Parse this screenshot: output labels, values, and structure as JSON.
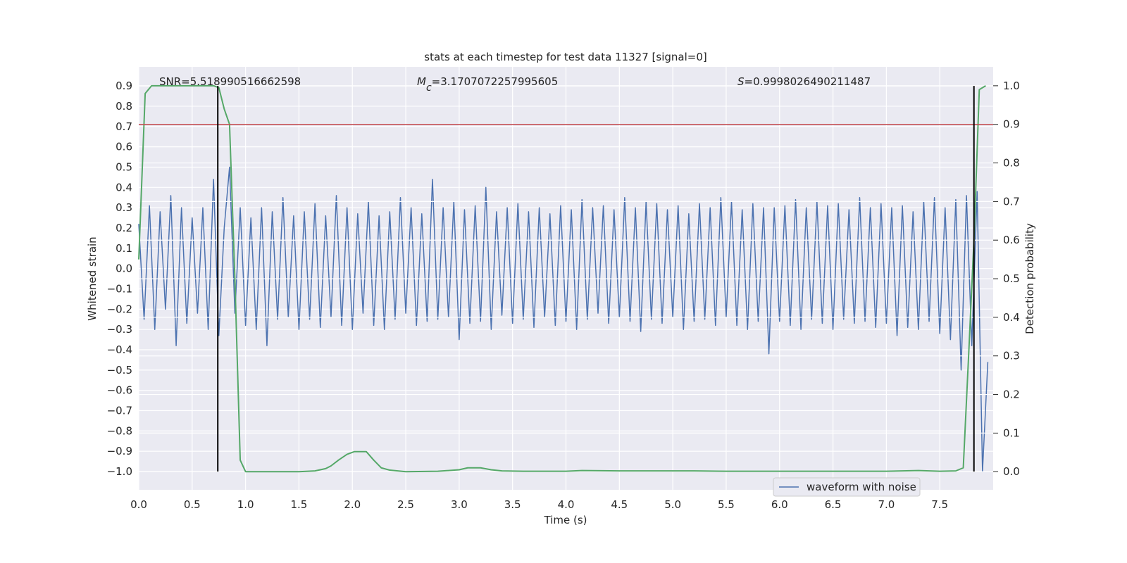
{
  "chart_data": {
    "type": "line",
    "title": "stats at each timestep for test data 11327 [signal=0]",
    "x_label": "Time (s)",
    "y_label": "Whitened strain",
    "y2_label": "Detection probability",
    "annotations": [
      {
        "text": "SNR=5.518990516662598"
      },
      {
        "symbol": "M",
        "subscript": "c",
        "text": "=3.1707072257995605"
      },
      {
        "symbol": "S",
        "text": "=0.9998026490211487"
      }
    ],
    "xlim": [
      0,
      8.0
    ],
    "ylim": [
      -1.09,
      0.994
    ],
    "y2lim": [
      -0.047,
      1.049
    ],
    "xticks": [
      {
        "value": 0,
        "label": "0.0"
      },
      {
        "value": 0.5,
        "label": "0.5"
      },
      {
        "value": 1,
        "label": "1.0"
      },
      {
        "value": 1.5,
        "label": "1.5"
      },
      {
        "value": 2,
        "label": "2.0"
      },
      {
        "value": 2.5,
        "label": "2.5"
      },
      {
        "value": 3,
        "label": "3.0"
      },
      {
        "value": 3.5,
        "label": "3.5"
      },
      {
        "value": 4,
        "label": "4.0"
      },
      {
        "value": 4.5,
        "label": "4.5"
      },
      {
        "value": 5,
        "label": "5.0"
      },
      {
        "value": 5.5,
        "label": "5.5"
      },
      {
        "value": 6,
        "label": "6.0"
      },
      {
        "value": 6.5,
        "label": "6.5"
      },
      {
        "value": 7,
        "label": "7.0"
      },
      {
        "value": 7.5,
        "label": "7.5"
      }
    ],
    "yticks": [
      {
        "value": -1.0,
        "label": "−1.0"
      },
      {
        "value": -0.9,
        "label": "−0.9"
      },
      {
        "value": -0.8,
        "label": "−0.8"
      },
      {
        "value": -0.7,
        "label": "−0.7"
      },
      {
        "value": -0.6,
        "label": "−0.6"
      },
      {
        "value": -0.5,
        "label": "−0.5"
      },
      {
        "value": -0.4,
        "label": "−0.4"
      },
      {
        "value": -0.3,
        "label": "−0.3"
      },
      {
        "value": -0.2,
        "label": "−0.2"
      },
      {
        "value": -0.1,
        "label": "−0.1"
      },
      {
        "value": 0,
        "label": "0.0"
      },
      {
        "value": 0.1,
        "label": "0.1"
      },
      {
        "value": 0.2,
        "label": "0.2"
      },
      {
        "value": 0.3,
        "label": "0.3"
      },
      {
        "value": 0.4,
        "label": "0.4"
      },
      {
        "value": 0.5,
        "label": "0.5"
      },
      {
        "value": 0.6,
        "label": "0.6"
      },
      {
        "value": 0.7,
        "label": "0.7"
      },
      {
        "value": 0.8,
        "label": "0.8"
      },
      {
        "value": 0.9,
        "label": "0.9"
      }
    ],
    "y2ticks": [
      {
        "value": 0,
        "label": "0.0"
      },
      {
        "value": 0.1,
        "label": "0.1"
      },
      {
        "value": 0.2,
        "label": "0.2"
      },
      {
        "value": 0.3,
        "label": "0.3"
      },
      {
        "value": 0.4,
        "label": "0.4"
      },
      {
        "value": 0.5,
        "label": "0.5"
      },
      {
        "value": 0.6,
        "label": "0.6"
      },
      {
        "value": 0.7,
        "label": "0.7"
      },
      {
        "value": 0.8,
        "label": "0.8"
      },
      {
        "value": 0.9,
        "label": "0.9"
      },
      {
        "value": 1,
        "label": "1.0"
      }
    ],
    "grid": true,
    "legend": "lower right",
    "series": [
      {
        "name": "waveform with noise",
        "color": "#4c72b0",
        "x": [
          0,
          0.05,
          0.1,
          0.15,
          0.2,
          0.25,
          0.3,
          0.35,
          0.4,
          0.45,
          0.5,
          0.55,
          0.6,
          0.65,
          0.7,
          0.75,
          0.8,
          0.85,
          0.9,
          0.95,
          1,
          1.05,
          1.1,
          1.15,
          1.2,
          1.25,
          1.3,
          1.35,
          1.4,
          1.45,
          1.5,
          1.55,
          1.6,
          1.65,
          1.7,
          1.75,
          1.8,
          1.85,
          1.9,
          1.95,
          2,
          2.05,
          2.1,
          2.15,
          2.2,
          2.25,
          2.3,
          2.35,
          2.4,
          2.45,
          2.5,
          2.55,
          2.6,
          2.65,
          2.7,
          2.75,
          2.8,
          2.85,
          2.9,
          2.95,
          3,
          3.05,
          3.1,
          3.15,
          3.2,
          3.25,
          3.3,
          3.35,
          3.4,
          3.45,
          3.5,
          3.55,
          3.6,
          3.65,
          3.7,
          3.75,
          3.8,
          3.85,
          3.9,
          3.95,
          4,
          4.05,
          4.1,
          4.15,
          4.2,
          4.25,
          4.3,
          4.35,
          4.4,
          4.45,
          4.5,
          4.55,
          4.6,
          4.65,
          4.7,
          4.75,
          4.8,
          4.85,
          4.9,
          4.95,
          5,
          5.05,
          5.1,
          5.15,
          5.2,
          5.25,
          5.3,
          5.35,
          5.4,
          5.45,
          5.5,
          5.55,
          5.6,
          5.65,
          5.7,
          5.75,
          5.8,
          5.85,
          5.9,
          5.95,
          6,
          6.05,
          6.1,
          6.15,
          6.2,
          6.25,
          6.3,
          6.35,
          6.4,
          6.45,
          6.5,
          6.55,
          6.6,
          6.65,
          6.7,
          6.75,
          6.8,
          6.85,
          6.9,
          6.95,
          7,
          7.05,
          7.1,
          7.15,
          7.2,
          7.25,
          7.3,
          7.35,
          7.4,
          7.45,
          7.5,
          7.55,
          7.6,
          7.65,
          7.7,
          7.75,
          7.8,
          7.85,
          7.9,
          7.95
        ],
        "values": [
          0.22,
          -0.25,
          0.31,
          -0.3,
          0.28,
          -0.2,
          0.36,
          -0.38,
          0.3,
          -0.27,
          0.25,
          -0.22,
          0.3,
          -0.3,
          0.44,
          -0.33,
          0.2,
          0.5,
          -0.22,
          0.3,
          -0.28,
          0.25,
          -0.3,
          0.3,
          -0.38,
          0.28,
          -0.25,
          0.35,
          -0.24,
          0.26,
          -0.3,
          0.28,
          -0.25,
          0.32,
          -0.29,
          0.26,
          -0.24,
          0.36,
          -0.28,
          0.3,
          -0.3,
          0.27,
          -0.22,
          0.33,
          -0.28,
          0.26,
          -0.3,
          0.28,
          -0.25,
          0.35,
          -0.22,
          0.3,
          -0.28,
          0.27,
          -0.26,
          0.44,
          -0.25,
          0.3,
          -0.24,
          0.33,
          -0.35,
          0.29,
          -0.27,
          0.31,
          -0.26,
          0.4,
          -0.3,
          0.28,
          -0.23,
          0.3,
          -0.27,
          0.32,
          -0.25,
          0.28,
          -0.29,
          0.3,
          -0.24,
          0.27,
          -0.28,
          0.31,
          -0.26,
          0.29,
          -0.3,
          0.34,
          -0.25,
          0.3,
          -0.22,
          0.31,
          -0.27,
          0.29,
          -0.24,
          0.35,
          -0.26,
          0.3,
          -0.31,
          0.33,
          -0.25,
          0.32,
          -0.27,
          0.29,
          -0.24,
          0.31,
          -0.3,
          0.27,
          -0.26,
          0.32,
          -0.25,
          0.3,
          -0.28,
          0.35,
          -0.24,
          0.33,
          -0.28,
          0.29,
          -0.3,
          0.32,
          -0.26,
          0.3,
          -0.42,
          0.3,
          -0.26,
          0.31,
          -0.28,
          0.34,
          -0.3,
          0.3,
          -0.25,
          0.33,
          -0.27,
          0.31,
          -0.3,
          0.32,
          -0.25,
          0.29,
          -0.27,
          0.35,
          -0.26,
          0.3,
          -0.29,
          0.32,
          -0.27,
          0.3,
          -0.33,
          0.31,
          -0.29,
          0.28,
          -0.3,
          0.33,
          -0.26,
          0.35,
          -0.32,
          0.3,
          -0.35,
          0.34,
          -0.5,
          0.36,
          -0.38,
          0.38,
          -1.0,
          -0.46
        ]
      },
      {
        "color": "#55a868",
        "axis": "y2",
        "x": [
          0,
          0.06,
          0.12,
          0.2,
          0.3,
          0.4,
          0.5,
          0.6,
          0.7,
          0.75,
          0.8,
          0.85,
          0.9,
          0.95,
          1.0,
          1.1,
          1.3,
          1.5,
          1.65,
          1.75,
          1.8,
          1.87,
          1.95,
          2.02,
          2.08,
          2.13,
          2.2,
          2.27,
          2.35,
          2.5,
          2.8,
          3.0,
          3.08,
          3.2,
          3.3,
          3.4,
          3.6,
          4.0,
          4.15,
          4.5,
          4.8,
          5.2,
          5.5,
          6.0,
          6.5,
          7.0,
          7.3,
          7.5,
          7.65,
          7.72,
          7.77,
          7.82,
          7.87,
          7.93
        ],
        "values": [
          0.55,
          0.98,
          1.0,
          1.0,
          1.0,
          1.0,
          1.0,
          1.0,
          1.0,
          0.995,
          0.94,
          0.9,
          0.5,
          0.03,
          0.0,
          0.0,
          0.0,
          0.0,
          0.002,
          0.008,
          0.015,
          0.03,
          0.045,
          0.052,
          0.052,
          0.052,
          0.03,
          0.01,
          0.004,
          0.0,
          0.001,
          0.005,
          0.01,
          0.01,
          0.005,
          0.002,
          0.001,
          0.001,
          0.003,
          0.002,
          0.002,
          0.002,
          0.001,
          0.001,
          0.001,
          0.001,
          0.003,
          0.001,
          0.002,
          0.01,
          0.3,
          0.6,
          0.99,
          1.0
        ]
      }
    ],
    "hline": {
      "y2": 0.9,
      "color": "#c44e52"
    },
    "vlines": [
      {
        "x": 0.74,
        "ymin": -1.0,
        "ymax": 0.9
      },
      {
        "x": 7.82,
        "ymin": -1.0,
        "ymax": 0.9
      }
    ]
  }
}
